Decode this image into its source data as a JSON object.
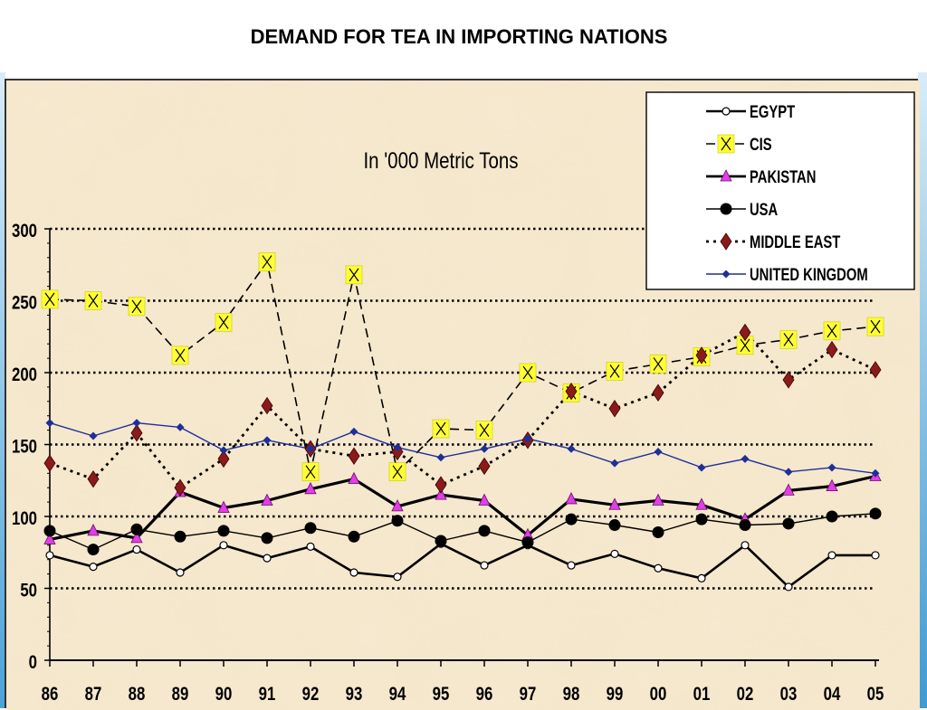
{
  "page": {
    "title": "DEMAND FOR TEA IN IMPORTING NATIONS"
  },
  "chart_data": {
    "type": "line",
    "title": "DEMAND FOR TEA IN IMPORTING NATIONS",
    "subtitle": "In  '000 Metric Tons",
    "xlabel": "",
    "ylabel": "",
    "ylim": [
      0,
      300
    ],
    "yticks": [
      0,
      50,
      100,
      150,
      200,
      250,
      300
    ],
    "grid": true,
    "legend_position": "top-right",
    "categories": [
      "86",
      "87",
      "88",
      "89",
      "90",
      "91",
      "92",
      "93",
      "94",
      "95",
      "96",
      "97",
      "98",
      "99",
      "00",
      "01",
      "02",
      "03",
      "04",
      "05"
    ],
    "series": [
      {
        "name": "EGYPT",
        "color": "#000000",
        "marker": "open-circle",
        "values": [
          73,
          65,
          77,
          61,
          80,
          71,
          79,
          61,
          58,
          81,
          66,
          80,
          66,
          74,
          64,
          57,
          80,
          51,
          73,
          73
        ]
      },
      {
        "name": "CIS",
        "color": "#000000",
        "marker": "x-yellow-square",
        "values": [
          251,
          250,
          246,
          212,
          235,
          277,
          131,
          268,
          131,
          161,
          160,
          200,
          186,
          201,
          206,
          211,
          219,
          223,
          229,
          232
        ]
      },
      {
        "name": "PAKISTAN",
        "color": "#000000",
        "marker": "magenta-triangle",
        "values": [
          84,
          90,
          85,
          117,
          106,
          111,
          119,
          126,
          107,
          115,
          111,
          87,
          112,
          108,
          111,
          108,
          98,
          118,
          121,
          128
        ]
      },
      {
        "name": "USA",
        "color": "#000000",
        "marker": "filled-circle",
        "values": [
          90,
          77,
          91,
          86,
          90,
          85,
          92,
          86,
          97,
          83,
          90,
          82,
          98,
          94,
          89,
          98,
          94,
          95,
          100,
          102
        ]
      },
      {
        "name": "MIDDLE EAST",
        "color": "#000000",
        "marker": "brown-diamond",
        "values": [
          137,
          126,
          158,
          120,
          140,
          177,
          147,
          142,
          145,
          122,
          135,
          153,
          187,
          175,
          186,
          212,
          228,
          195,
          216,
          202
        ]
      },
      {
        "name": "UNITED KINGDOM",
        "color": "#1f2f99",
        "marker": "blue-diamond",
        "values": [
          165,
          156,
          165,
          162,
          146,
          153,
          147,
          159,
          148,
          141,
          147,
          154,
          147,
          137,
          145,
          134,
          140,
          131,
          134,
          130
        ]
      }
    ]
  }
}
